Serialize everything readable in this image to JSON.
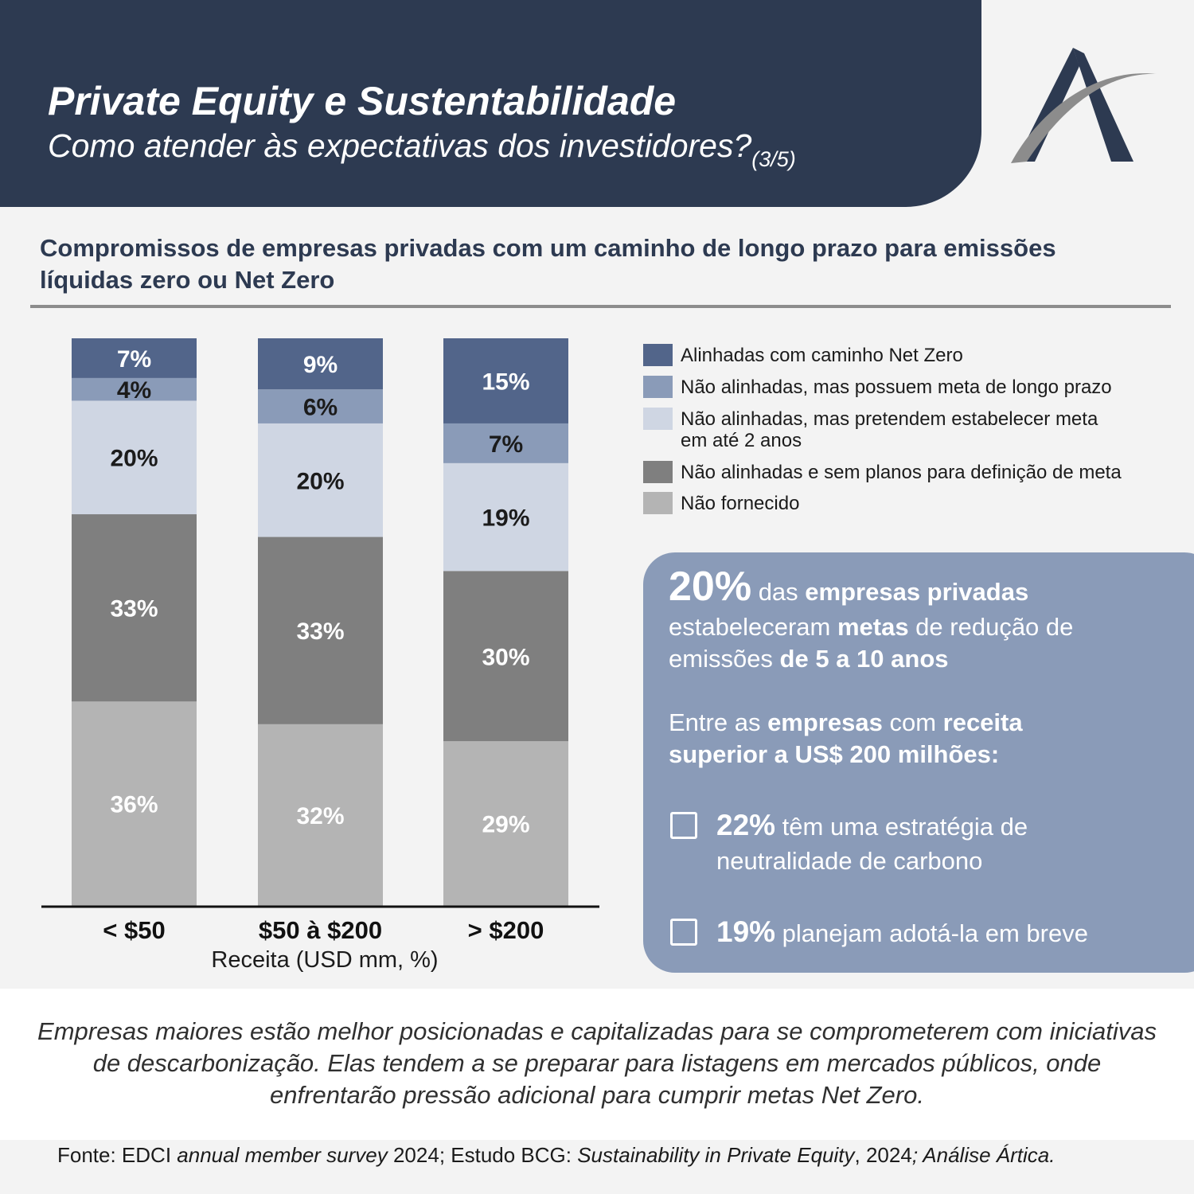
{
  "header": {
    "title": "Private Equity e Sustentabilidade",
    "subtitle": "Como atender às expectativas dos investidores?",
    "part": "(3/5)",
    "logo_icon": "artica-a-logo-icon",
    "colors": {
      "header_bg": "#2d3a51",
      "logo_gray": "#8c8c8c",
      "logo_navy": "#2d3a51"
    }
  },
  "section_title": "Compromissos de empresas privadas com um caminho de longo prazo para emissões líquidas zero ou Net Zero",
  "chart_data": {
    "type": "bar",
    "stacked": true,
    "categories": [
      "< $50",
      "$50 à $200",
      "> $200"
    ],
    "xlabel": "Receita (USD mm, %)",
    "ylabel": "",
    "ylim": [
      0,
      100
    ],
    "grid": false,
    "legend_position": "right",
    "series": [
      {
        "name": "Não fornecido",
        "values": [
          36,
          32,
          29
        ],
        "color": "#b4b4b4",
        "label_color": "#ffffff"
      },
      {
        "name": "Não alinhadas e sem planos para definição de meta",
        "values": [
          33,
          33,
          30
        ],
        "color": "#7f7f7f",
        "label_color": "#ffffff"
      },
      {
        "name": "Não alinhadas, mas pretendem estabelecer meta em até 2 anos",
        "values": [
          20,
          20,
          19
        ],
        "color": "#cfd6e3",
        "label_color": "#1b1b1b"
      },
      {
        "name": "Não alinhadas, mas possuem meta de longo prazo",
        "values": [
          4,
          6,
          7
        ],
        "color": "#8a9bb8",
        "label_color": "#1b1b1b"
      },
      {
        "name": "Alinhadas com caminho Net Zero",
        "values": [
          7,
          9,
          15
        ],
        "color": "#52658a",
        "label_color": "#ffffff"
      }
    ]
  },
  "legend": {
    "items": [
      {
        "label": "Alinhadas com caminho Net Zero",
        "color": "#52658a"
      },
      {
        "label": "Não alinhadas, mas possuem meta de longo prazo",
        "color": "#8a9bb8"
      },
      {
        "label": "Não alinhadas, mas pretendem estabelecer meta em até 2 anos",
        "color": "#cfd6e3"
      },
      {
        "label": "Não alinhadas e sem planos para definição de meta",
        "color": "#7f7f7f"
      },
      {
        "label": "Não fornecido",
        "color": "#b4b4b4"
      }
    ]
  },
  "callout": {
    "pct": "20%",
    "l1_a": " das ",
    "l1_b": "empresas privadas",
    "l2_a": "estabeleceram ",
    "l2_b": "metas",
    "l2_c": " de redução de",
    "l3_a": "emissões ",
    "l3_b": "de 5 a 10 anos",
    "l4_a": "Entre as ",
    "l4_b": "empresas",
    "l4_c": " com ",
    "l4_d": "receita",
    "l5": "superior a US$ 200 milhões:",
    "b1_pct": "22%",
    "b1_a": " têm uma estratégia de",
    "b1_b": "neutralidade de carbono",
    "b2_pct": "19%",
    "b2_a": " planejam adotá-la em breve",
    "colors": {
      "bg": "#8a9bb8"
    }
  },
  "conclusion": "Empresas maiores estão melhor posicionadas e capitalizadas para se comprometerem com iniciativas de descarbonização. Elas tendem a se preparar para listagens em mercados públicos, onde enfrentarão pressão adicional para cumprir metas Net Zero.",
  "source": {
    "a": "Fonte: EDCI ",
    "b": "annual member survey",
    "c": " 2024; Estudo BCG: ",
    "d": "Sustainability in Private Equity",
    "e": ", 2024",
    "f": "; Análise Ártica."
  }
}
